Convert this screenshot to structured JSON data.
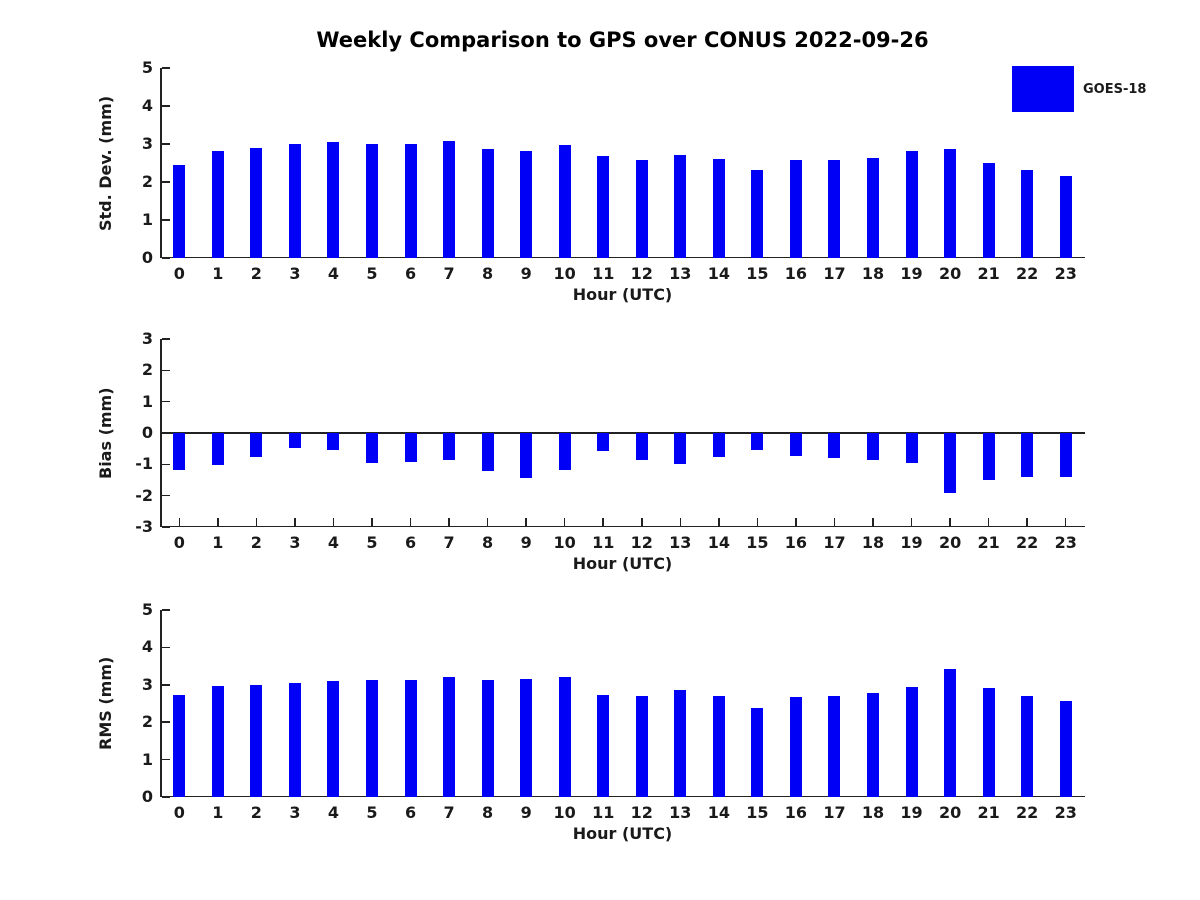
{
  "figure": {
    "title": "Weekly Comparison to GPS over CONUS 2022-09-26",
    "background": "#ffffff"
  },
  "legend": {
    "label": "GOES-18",
    "swatch_color": "#0000f6",
    "position": "upper-right-outside"
  },
  "colors": {
    "bar": "#0000f6",
    "axis": "#222222",
    "text": "#1a1a1a"
  },
  "chart_data": [
    {
      "type": "bar",
      "name": "std-dev",
      "series_name": "GOES-18",
      "title": "",
      "ylabel": "Std. Dev. (mm)",
      "xlabel": "Hour (UTC)",
      "ylim": [
        0,
        5
      ],
      "yticks": [
        0,
        1,
        2,
        3,
        4,
        5
      ],
      "grid": false,
      "bar_color": "#0000f6",
      "categories": [
        0,
        1,
        2,
        3,
        4,
        5,
        6,
        7,
        8,
        9,
        10,
        11,
        12,
        13,
        14,
        15,
        16,
        17,
        18,
        19,
        20,
        21,
        22,
        23
      ],
      "values": [
        2.45,
        2.82,
        2.9,
        3.01,
        3.06,
        3.01,
        3.01,
        3.09,
        2.88,
        2.82,
        2.98,
        2.68,
        2.58,
        2.72,
        2.6,
        2.32,
        2.58,
        2.58,
        2.64,
        2.82,
        2.88,
        2.5,
        2.32,
        2.16
      ]
    },
    {
      "type": "bar",
      "name": "bias",
      "series_name": "GOES-18",
      "title": "",
      "ylabel": "Bias (mm)",
      "xlabel": "Hour (UTC)",
      "ylim": [
        -3,
        3
      ],
      "yticks": [
        3,
        2,
        1,
        0,
        -1,
        -2,
        -3
      ],
      "grid": false,
      "bar_color": "#0000f6",
      "categories": [
        0,
        1,
        2,
        3,
        4,
        5,
        6,
        7,
        8,
        9,
        10,
        11,
        12,
        13,
        14,
        15,
        16,
        17,
        18,
        19,
        20,
        21,
        22,
        23
      ],
      "values": [
        -1.17,
        -1.03,
        -0.78,
        -0.48,
        -0.54,
        -0.96,
        -0.93,
        -0.87,
        -1.22,
        -1.43,
        -1.18,
        -0.57,
        -0.87,
        -0.98,
        -0.76,
        -0.55,
        -0.72,
        -0.8,
        -0.87,
        -0.95,
        -1.9,
        -1.5,
        -1.4,
        -1.42
      ]
    },
    {
      "type": "bar",
      "name": "rms",
      "series_name": "GOES-18",
      "title": "",
      "ylabel": "RMS (mm)",
      "xlabel": "Hour (UTC)",
      "ylim": [
        0,
        5
      ],
      "yticks": [
        0,
        1,
        2,
        3,
        4,
        5
      ],
      "grid": false,
      "bar_color": "#0000f6",
      "categories": [
        0,
        1,
        2,
        3,
        4,
        5,
        6,
        7,
        8,
        9,
        10,
        11,
        12,
        13,
        14,
        15,
        16,
        17,
        18,
        19,
        20,
        21,
        22,
        23
      ],
      "values": [
        2.72,
        2.98,
        3.0,
        3.04,
        3.1,
        3.14,
        3.14,
        3.2,
        3.12,
        3.16,
        3.2,
        2.74,
        2.71,
        2.86,
        2.69,
        2.38,
        2.67,
        2.7,
        2.77,
        2.95,
        3.43,
        2.92,
        2.71,
        2.58
      ]
    }
  ]
}
